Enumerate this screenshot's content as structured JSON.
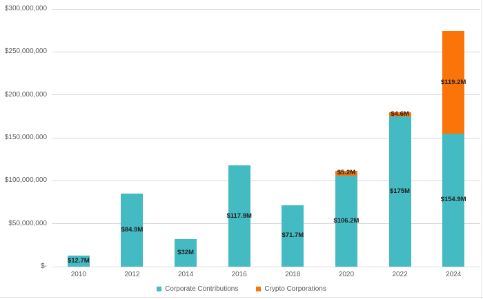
{
  "chart_data": {
    "type": "bar",
    "stacked": true,
    "title": "",
    "xlabel": "",
    "ylabel": "",
    "categories": [
      "2010",
      "2012",
      "2014",
      "2016",
      "2018",
      "2020",
      "2022",
      "2024"
    ],
    "series": [
      {
        "name": "Corporate Contributions",
        "color": "#44BAC3",
        "values": [
          12700000,
          84900000,
          32000000,
          117900000,
          71700000,
          106200000,
          175000000,
          154900000
        ],
        "data_labels": [
          "$12.7M",
          "$84.9M",
          "$32M",
          "$117.9M",
          "$71.7M",
          "$106.2M",
          "$175M",
          "$154.9M"
        ]
      },
      {
        "name": "Crypto Corporations",
        "color": "#FB7409",
        "values": [
          0,
          0,
          0,
          0,
          0,
          5200000,
          4600000,
          119200000
        ],
        "data_labels": [
          "",
          "",
          "",
          "",
          "",
          "$5.2M",
          "$4.6M",
          "$119.2M"
        ]
      }
    ],
    "ylim": [
      0,
      300000000
    ],
    "ytick_interval": 50000000,
    "ytick_labels": [
      "$-",
      "$50,000,000",
      "$100,000,000",
      "$150,000,000",
      "$200,000,000",
      "$250,000,000",
      "$300,000,000"
    ],
    "grid": true,
    "legend_position": "bottom",
    "data_label_position": "center"
  },
  "colors": {
    "corporate": "#44BAC3",
    "crypto": "#FB7409",
    "gridline": "#D9D9D9",
    "axis_text": "#595959",
    "data_label_text": "#1F1F1F",
    "legend_text": "#595959"
  }
}
